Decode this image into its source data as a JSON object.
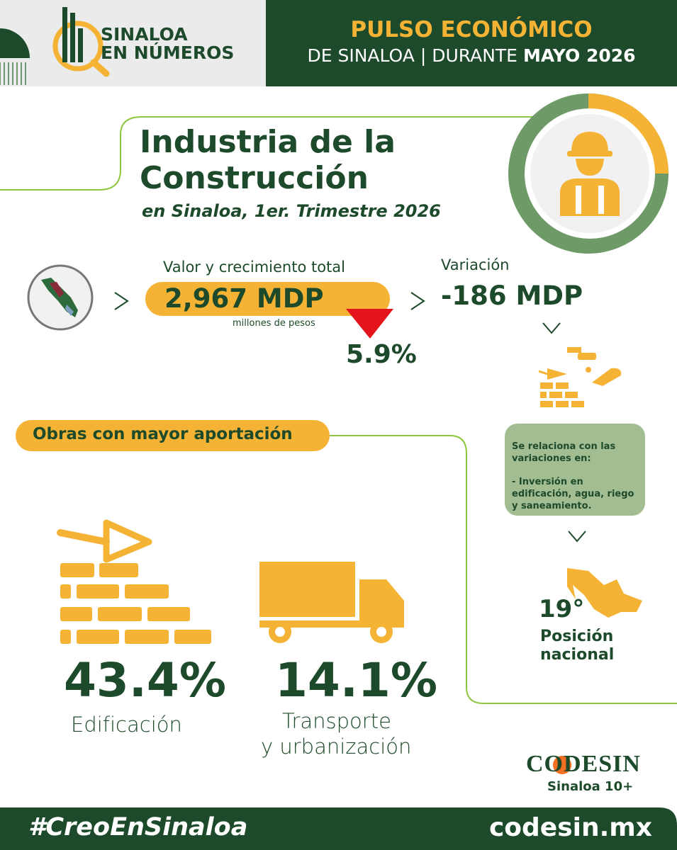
{
  "header": {
    "logo_line1": "SINALOA",
    "logo_line2": "EN NÚMEROS",
    "title": "PULSO ECONÓMICO",
    "subtitle_prefix": "DE SINALOA | DURANTE",
    "subtitle_bold": "MAYO 2026"
  },
  "section": {
    "title_line1": "Industria de la",
    "title_line2": "Construcción",
    "subtitle": "en Sinaloa, 1er. Trimestre 2026"
  },
  "value": {
    "label": "Valor y crecimiento total",
    "amount": "2,967 MDP",
    "unit_note": "millones de pesos",
    "change": "5.9%"
  },
  "variation": {
    "label": "Variación",
    "amount": "-186 MDP",
    "note_title": "Se relaciona con las variaciones en:",
    "note_item": "- Inversión en edificación, agua, riego y saneamiento.",
    "rank": "19°",
    "rank_label_line1": "Posición",
    "rank_label_line2": "nacional"
  },
  "works": {
    "title": "Obras con mayor aportación",
    "items": [
      {
        "share": "43.4%",
        "label_line1": "Edificación"
      },
      {
        "share": "14.1%",
        "label_line1": "Transporte",
        "label_line2": "y urbanización"
      }
    ]
  },
  "footer": {
    "brand": "CODESIN",
    "brand_tag": "Sinaloa 10+",
    "hashtag": "#CreoEnSinaloa",
    "url": "codesin.mx"
  }
}
